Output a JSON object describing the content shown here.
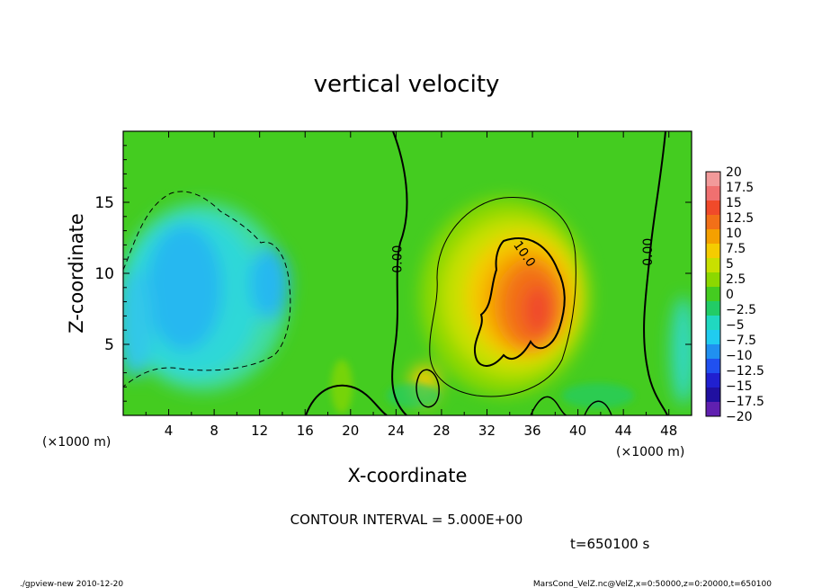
{
  "chart_data": {
    "type": "heatmap",
    "title": "vertical velocity",
    "xlabel": "X-coordinate",
    "ylabel": "Z-coordinate",
    "x_unit": "(×1000 m)",
    "y_unit": "(×1000 m)",
    "xlim": [
      0,
      50
    ],
    "ylim": [
      0,
      20
    ],
    "x_ticks": [
      4,
      8,
      12,
      16,
      20,
      24,
      28,
      32,
      36,
      40,
      44,
      48
    ],
    "y_ticks": [
      5,
      10,
      15
    ],
    "colorbar": {
      "labels": [
        "20",
        "17.5",
        "15",
        "12.5",
        "10",
        "7.5",
        "5",
        "2.5",
        "0",
        "−2.5",
        "−5",
        "−7.5",
        "−10",
        "−12.5",
        "−15",
        "−17.5",
        "−20"
      ],
      "colors": [
        "#f29a9a",
        "#f07070",
        "#f04a2a",
        "#f27018",
        "#f5a000",
        "#f5cc00",
        "#c8e000",
        "#8cd800",
        "#44cc20",
        "#22cc66",
        "#20d8c0",
        "#20ccf0",
        "#2090f0",
        "#2050f0",
        "#2020d0",
        "#2010a0",
        "#6020b0"
      ]
    },
    "contours": [
      {
        "label": "0.00",
        "x": 24.5,
        "z": 11.0
      },
      {
        "label": "0.00",
        "x": 46.5,
        "z": 11.5
      },
      {
        "label": "10.0",
        "x": 35.0,
        "z": 11.2
      }
    ],
    "contour_interval": "CONTOUR INTERVAL = 5.000E+00",
    "time": "t=650100 s"
  },
  "footer": {
    "left": "./gpview-new   2010-12-20",
    "right": "MarsCond_VelZ.nc@VelZ,x=0:50000,z=0:20000,t=650100"
  }
}
